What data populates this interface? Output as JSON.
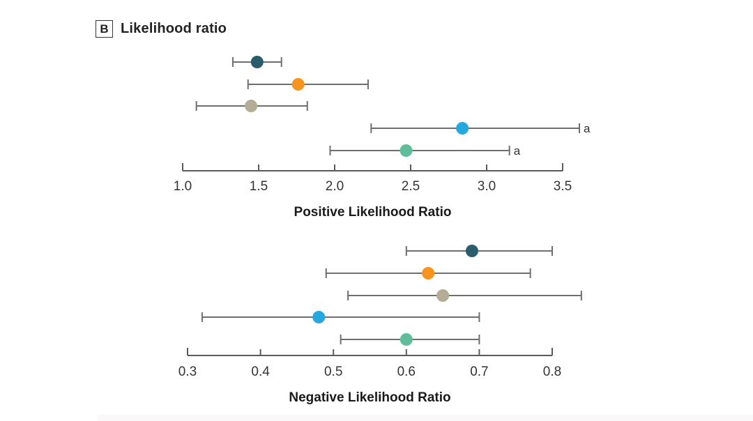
{
  "figure": {
    "panel_tag": "B",
    "panel_title": "Likelihood ratio"
  },
  "colors": {
    "axis_line": "#5a5a5a",
    "whisker_line": "#6e6e6e",
    "text": "#333333",
    "title_text": "#1a1a1a"
  },
  "chart_data": [
    {
      "type": "scatter",
      "subtype": "forest-plot",
      "xlabel": "Positive Likelihood Ratio",
      "xlim": [
        1.0,
        3.5
      ],
      "xticks": [
        1.0,
        1.5,
        2.0,
        2.5,
        3.0,
        3.5
      ],
      "xtick_labels": [
        "1.0",
        "1.5",
        "2.0",
        "2.5",
        "3.0",
        "3.5"
      ],
      "grid": false,
      "legend": "none",
      "points": [
        {
          "color": "#2B5C6B",
          "value": 1.49,
          "ci_low": 1.33,
          "ci_high": 1.65,
          "note": ""
        },
        {
          "color": "#F7941E",
          "value": 1.76,
          "ci_low": 1.43,
          "ci_high": 2.22,
          "note": ""
        },
        {
          "color": "#B5AC97",
          "value": 1.45,
          "ci_low": 1.09,
          "ci_high": 1.82,
          "note": ""
        },
        {
          "color": "#25A8DF",
          "value": 2.84,
          "ci_low": 2.24,
          "ci_high": 3.61,
          "note": "a"
        },
        {
          "color": "#5FBE99",
          "value": 2.47,
          "ci_low": 1.97,
          "ci_high": 3.15,
          "note": "a"
        }
      ]
    },
    {
      "type": "scatter",
      "subtype": "forest-plot",
      "xlabel": "Negative Likelihood Ratio",
      "xlim": [
        0.3,
        0.8
      ],
      "xticks": [
        0.3,
        0.4,
        0.5,
        0.6,
        0.7,
        0.8
      ],
      "xtick_labels": [
        "0.3",
        "0.4",
        "0.5",
        "0.6",
        "0.7",
        "0.8"
      ],
      "grid": false,
      "legend": "none",
      "points": [
        {
          "color": "#2B5C6B",
          "value": 0.69,
          "ci_low": 0.6,
          "ci_high": 0.8,
          "note": ""
        },
        {
          "color": "#F7941E",
          "value": 0.63,
          "ci_low": 0.49,
          "ci_high": 0.77,
          "note": ""
        },
        {
          "color": "#B5AC97",
          "value": 0.65,
          "ci_low": 0.52,
          "ci_high": 0.84,
          "note": ""
        },
        {
          "color": "#25A8DF",
          "value": 0.48,
          "ci_low": 0.32,
          "ci_high": 0.7,
          "note": ""
        },
        {
          "color": "#5FBE99",
          "value": 0.6,
          "ci_low": 0.51,
          "ci_high": 0.7,
          "note": ""
        }
      ]
    }
  ]
}
